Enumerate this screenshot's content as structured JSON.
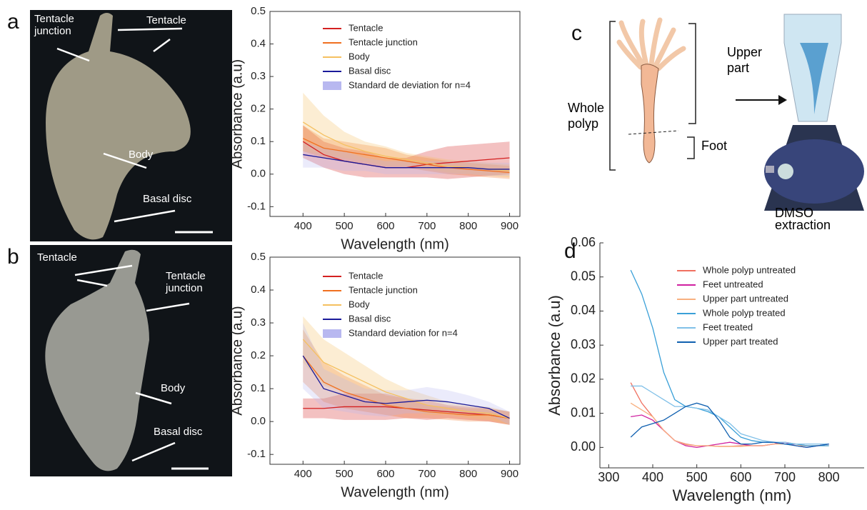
{
  "panels": {
    "a": "a",
    "b": "b",
    "c": "c",
    "d": "d"
  },
  "photo_a": {
    "tentacle_junction": "Tentacle junction",
    "tentacle": "Tentacle",
    "body": "Body",
    "basal_disc": "Basal disc"
  },
  "photo_b": {
    "tentacle": "Tentacle",
    "tentacle_junction": "Tentacle junction",
    "body": "Body",
    "basal_disc": "Basal disc"
  },
  "diagram_c": {
    "whole_polyp": "Whole polyp",
    "upper_part": "Upper part",
    "foot": "Foot",
    "extraction": "DMSO extraction"
  },
  "chart_data": [
    {
      "type": "line",
      "x_label": "Wavelength (nm)",
      "y_label": "Absorbance (a.u)",
      "x": [
        400,
        450,
        500,
        550,
        600,
        650,
        700,
        750,
        800,
        850,
        900
      ],
      "xlim": [
        320,
        925
      ],
      "xticks": [
        400,
        500,
        600,
        700,
        800,
        900
      ],
      "ylim": [
        -0.13,
        0.5
      ],
      "yticks": [
        -0.1,
        {
          "value": 0,
          "label": "0.0"
        },
        0.1,
        0.2,
        0.3,
        0.4,
        0.5
      ],
      "band_label": "Standard de deviation for n=4",
      "band_color": "#b8b8f0",
      "series": [
        {
          "name": "Tentacle",
          "color": "#d42020",
          "values": [
            0.1,
            0.06,
            0.04,
            0.03,
            0.02,
            0.02,
            0.03,
            0.035,
            0.04,
            0.045,
            0.05
          ],
          "std": [
            0.05,
            0.04,
            0.04,
            0.04,
            0.03,
            0.03,
            0.04,
            0.05,
            0.05,
            0.05,
            0.05
          ]
        },
        {
          "name": "Tentacle junction",
          "color": "#f07020",
          "values": [
            0.11,
            0.08,
            0.07,
            0.06,
            0.05,
            0.04,
            0.03,
            0.02,
            0.015,
            0.01,
            0.005
          ],
          "std": [
            0.04,
            0.03,
            0.03,
            0.03,
            0.03,
            0.02,
            0.02,
            0.02,
            0.02,
            0.02,
            0.02
          ]
        },
        {
          "name": "Body",
          "color": "#f5c060",
          "values": [
            0.16,
            0.12,
            0.09,
            0.07,
            0.055,
            0.045,
            0.035,
            0.025,
            0.02,
            0.015,
            0.01
          ],
          "std": [
            0.09,
            0.06,
            0.04,
            0.03,
            0.03,
            0.02,
            0.02,
            0.02,
            0.02,
            0.02,
            0.02
          ]
        },
        {
          "name": "Basal disc",
          "color": "#1a1a9a",
          "values": [
            0.06,
            0.05,
            0.04,
            0.03,
            0.02,
            0.02,
            0.02,
            0.02,
            0.02,
            0.015,
            0.015
          ],
          "std": [
            0.04,
            0.03,
            0.03,
            0.02,
            0.02,
            0.02,
            0.02,
            0.02,
            0.02,
            0.02,
            0.02
          ]
        }
      ]
    },
    {
      "type": "line",
      "x_label": "Wavelength (nm)",
      "y_label": "Absorbance (a.u)",
      "x": [
        400,
        450,
        500,
        550,
        600,
        650,
        700,
        750,
        800,
        850,
        900
      ],
      "xlim": [
        320,
        925
      ],
      "xticks": [
        400,
        500,
        600,
        700,
        800,
        900
      ],
      "ylim": [
        -0.13,
        0.5
      ],
      "yticks": [
        -0.1,
        {
          "value": 0,
          "label": "0.0"
        },
        0.1,
        0.2,
        0.3,
        0.4,
        0.5
      ],
      "band_label": "Standard deviation for n=4",
      "band_color": "#b8b8f0",
      "series": [
        {
          "name": "Tentacle",
          "color": "#d42020",
          "values": [
            0.04,
            0.04,
            0.045,
            0.045,
            0.045,
            0.04,
            0.035,
            0.03,
            0.025,
            0.02,
            0.01
          ],
          "std": [
            0.03,
            0.03,
            0.04,
            0.04,
            0.04,
            0.03,
            0.03,
            0.02,
            0.02,
            0.02,
            0.02
          ]
        },
        {
          "name": "Tentacle junction",
          "color": "#f07020",
          "values": [
            0.2,
            0.12,
            0.09,
            0.07,
            0.05,
            0.04,
            0.03,
            0.025,
            0.02,
            0.02,
            0.01
          ],
          "std": [
            0.08,
            0.06,
            0.05,
            0.04,
            0.03,
            0.03,
            0.02,
            0.02,
            0.02,
            0.02,
            0.02
          ]
        },
        {
          "name": "Body",
          "color": "#f5c060",
          "values": [
            0.25,
            0.18,
            0.15,
            0.12,
            0.09,
            0.07,
            0.05,
            0.04,
            0.03,
            0.025,
            0.01
          ],
          "std": [
            0.07,
            0.07,
            0.06,
            0.05,
            0.04,
            0.03,
            0.03,
            0.02,
            0.02,
            0.02,
            0.02
          ]
        },
        {
          "name": "Basal disc",
          "color": "#1a1a9a",
          "values": [
            0.2,
            0.1,
            0.08,
            0.06,
            0.055,
            0.06,
            0.065,
            0.06,
            0.05,
            0.04,
            0.01
          ],
          "std": [
            0.1,
            0.06,
            0.05,
            0.04,
            0.04,
            0.035,
            0.04,
            0.035,
            0.03,
            0.02,
            0.02
          ]
        }
      ]
    },
    {
      "type": "line",
      "x_label": "Wavelength (nm)",
      "y_label": "Absorbance (a.u)",
      "x": [
        350,
        375,
        400,
        425,
        450,
        475,
        500,
        525,
        550,
        575,
        600,
        625,
        650,
        675,
        700,
        725,
        750,
        775,
        800
      ],
      "xlim": [
        280,
        880
      ],
      "xticks": [
        300,
        400,
        500,
        600,
        700,
        800
      ],
      "ylim": [
        -0.006,
        0.06
      ],
      "yticks": [
        {
          "value": 0,
          "label": "0.00"
        },
        {
          "value": 0.01,
          "label": "0.01"
        },
        {
          "value": 0.02,
          "label": "0.02"
        },
        {
          "value": 0.03,
          "label": "0.03"
        },
        {
          "value": 0.04,
          "label": "0.04"
        },
        {
          "value": 0.05,
          "label": "0.05"
        },
        {
          "value": 0.06,
          "label": "0.06"
        }
      ],
      "series": [
        {
          "name": "Whole polyp untreated",
          "color": "#f07060",
          "values": [
            0.019,
            0.013,
            0.009,
            0.005,
            0.002,
            0.001,
            0.0005,
            0.0005,
            0.0003,
            0.0003,
            0.0005,
            0.0005,
            0.0005,
            0.001,
            0.0015,
            0.001,
            0.0005,
            0.0005,
            0.001
          ]
        },
        {
          "name": "Feet untreated",
          "color": "#d020a0",
          "values": [
            0.009,
            0.0095,
            0.008,
            0.005,
            0.002,
            0.0005,
            0,
            0.0005,
            0.001,
            0.0015,
            0.001,
            0.0005,
            0.0005,
            0.001,
            0.0015,
            0.0005,
            0,
            0.0005,
            0.001
          ]
        },
        {
          "name": "Upper part untreated",
          "color": "#f8b080",
          "values": [
            0.013,
            0.011,
            0.009,
            0.005,
            0.002,
            0.0008,
            0.0005,
            0.0005,
            0.0003,
            0.0003,
            0.0003,
            0.0005,
            0.0005,
            0.001,
            0.001,
            0.0005,
            0.0005,
            0.0005,
            0.0005
          ]
        },
        {
          "name": "Whole polyp treated",
          "color": "#3aa0d8",
          "values": [
            0.052,
            0.045,
            0.035,
            0.022,
            0.014,
            0.012,
            0.0115,
            0.0105,
            0.009,
            0.006,
            0.003,
            0.002,
            0.0015,
            0.0015,
            0.001,
            0.001,
            0.0005,
            0.0005,
            0.0005
          ]
        },
        {
          "name": "Feet treated",
          "color": "#80c0e8",
          "values": [
            0.018,
            0.018,
            0.016,
            0.014,
            0.012,
            0.012,
            0.0115,
            0.011,
            0.009,
            0.007,
            0.004,
            0.003,
            0.002,
            0.0015,
            0.0015,
            0.001,
            0.001,
            0.001,
            0.001
          ]
        },
        {
          "name": "Upper part treated",
          "color": "#1060b0",
          "values": [
            0.003,
            0.006,
            0.007,
            0.008,
            0.01,
            0.012,
            0.013,
            0.012,
            0.008,
            0.003,
            0.001,
            0.001,
            0.0015,
            0.0015,
            0.001,
            0.0005,
            0,
            0.0005,
            0.001
          ]
        }
      ]
    }
  ]
}
